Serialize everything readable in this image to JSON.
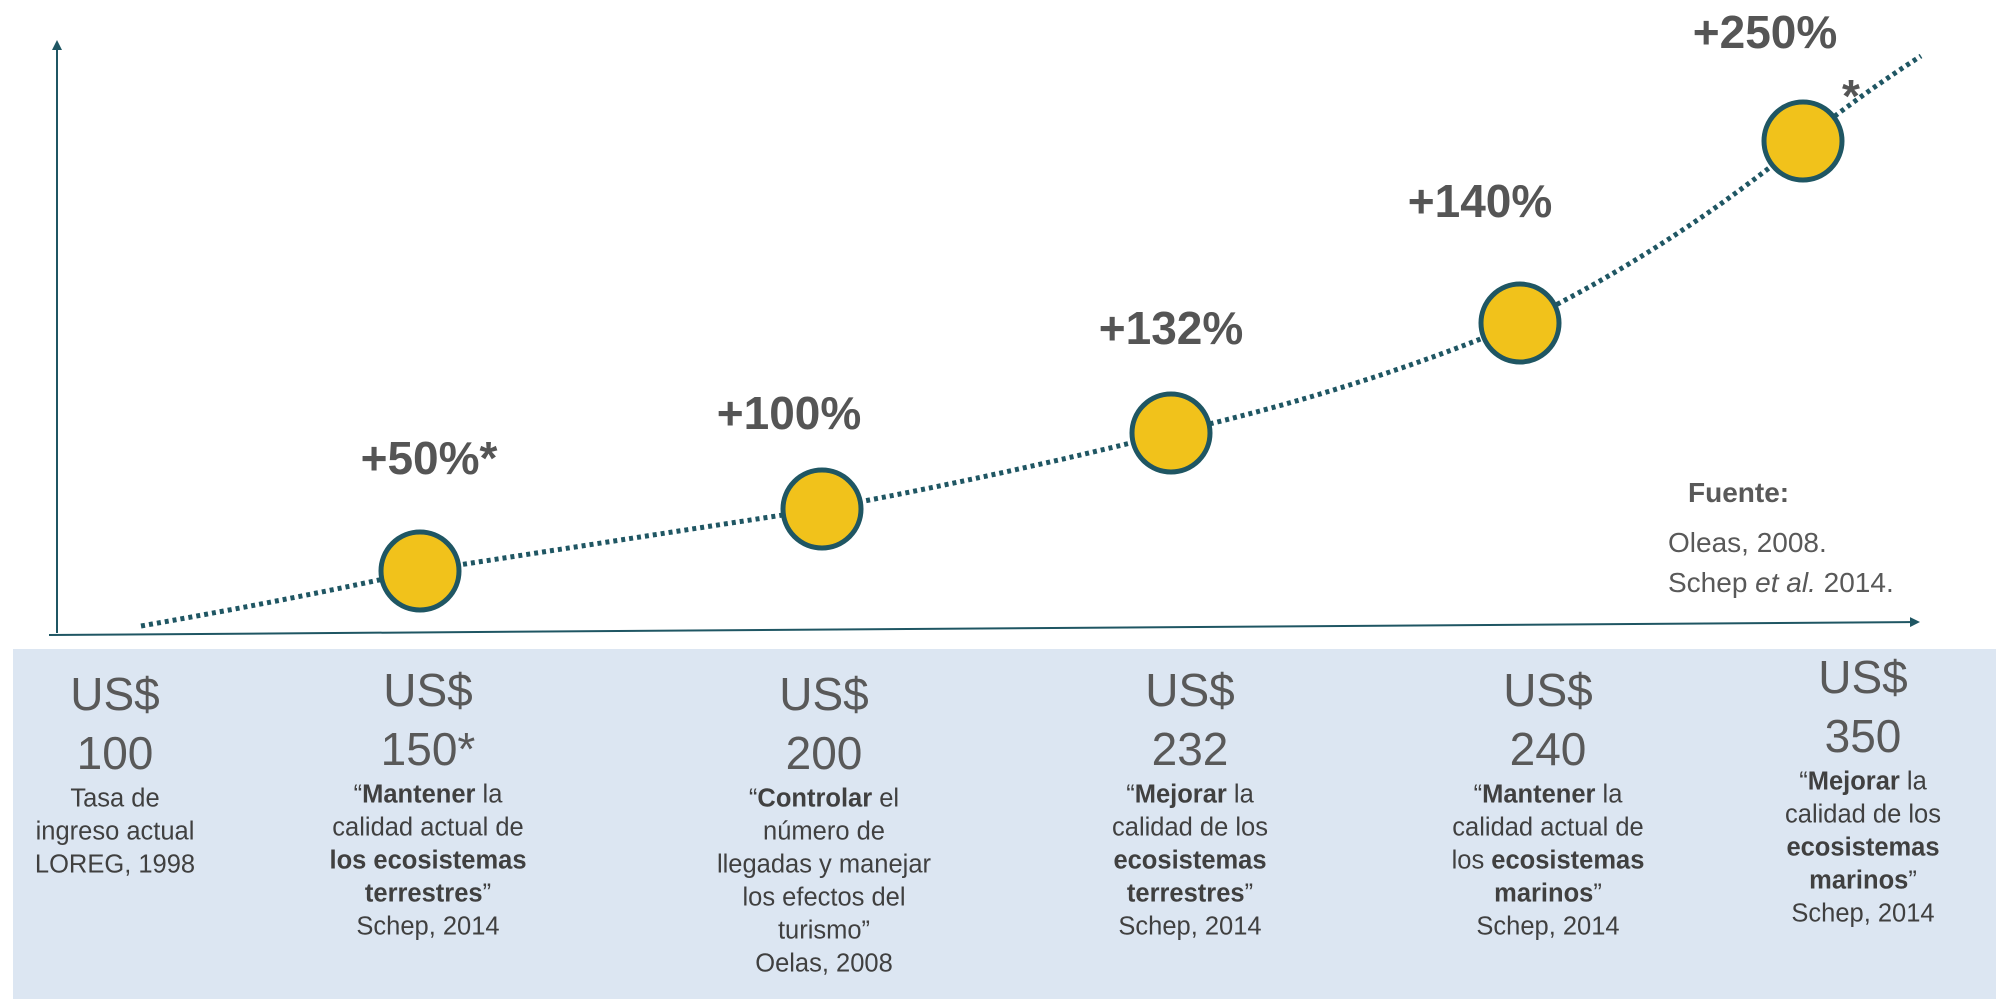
{
  "points": [
    {
      "label": "+50%*"
    },
    {
      "label": "+100%"
    },
    {
      "label": "+132%"
    },
    {
      "label": "+140%"
    },
    {
      "label": "+250%"
    }
  ],
  "extra_mark": "*",
  "source": {
    "title": "Fuente:",
    "lines": [
      [
        {
          "text": "Oleas, 2008."
        }
      ],
      [
        {
          "text": "Schep "
        },
        {
          "text": "et al.",
          "italic": true
        },
        {
          "text": " 2014."
        }
      ]
    ]
  },
  "columns": [
    {
      "currency": "US$",
      "amount": "100",
      "lines": [
        [
          {
            "text": "Tasa de"
          }
        ],
        [
          {
            "text": "ingreso actual"
          }
        ],
        [
          {
            "text": "LOREG, 1998"
          }
        ]
      ]
    },
    {
      "currency": "US$",
      "amount": "150*",
      "lines": [
        [
          {
            "text": "“"
          },
          {
            "text": "Mantener",
            "bold": true
          },
          {
            "text": " la"
          }
        ],
        [
          {
            "text": "calidad actual de"
          }
        ],
        [
          {
            "text": "los ecosistemas",
            "bold": true
          }
        ],
        [
          {
            "text": "terrestres",
            "bold": true
          },
          {
            "text": "”"
          }
        ],
        [
          {
            "text": "Schep, 2014"
          }
        ]
      ]
    },
    {
      "currency": "US$",
      "amount": "200",
      "lines": [
        [
          {
            "text": "“"
          },
          {
            "text": "Controlar",
            "bold": true
          },
          {
            "text": " el"
          }
        ],
        [
          {
            "text": "número de"
          }
        ],
        [
          {
            "text": "llegadas y manejar"
          }
        ],
        [
          {
            "text": "los efectos del"
          }
        ],
        [
          {
            "text": "turismo”"
          }
        ],
        [
          {
            "text": "Oelas, 2008"
          }
        ]
      ]
    },
    {
      "currency": "US$",
      "amount": "232",
      "lines": [
        [
          {
            "text": "“"
          },
          {
            "text": "Mejorar",
            "bold": true
          },
          {
            "text": " la"
          }
        ],
        [
          {
            "text": "calidad de los"
          }
        ],
        [
          {
            "text": "ecosistemas",
            "bold": true
          }
        ],
        [
          {
            "text": "terrestres",
            "bold": true
          },
          {
            "text": "”"
          }
        ],
        [
          {
            "text": "Schep, 2014"
          }
        ]
      ]
    },
    {
      "currency": "US$",
      "amount": "240",
      "lines": [
        [
          {
            "text": "“"
          },
          {
            "text": "Mantener",
            "bold": true
          },
          {
            "text": " la"
          }
        ],
        [
          {
            "text": "calidad actual de"
          }
        ],
        [
          {
            "text": "los "
          },
          {
            "text": "ecosistemas",
            "bold": true
          }
        ],
        [
          {
            "text": "marinos",
            "bold": true
          },
          {
            "text": "”"
          }
        ],
        [
          {
            "text": "Schep, 2014"
          }
        ]
      ]
    },
    {
      "currency": "US$",
      "amount": "350",
      "lines": [
        [
          {
            "text": "“"
          },
          {
            "text": "Mejorar",
            "bold": true
          },
          {
            "text": " la"
          }
        ],
        [
          {
            "text": "calidad de los"
          }
        ],
        [
          {
            "text": "ecosistemas",
            "bold": true
          }
        ],
        [
          {
            "text": "marinos",
            "bold": true
          },
          {
            "text": "”"
          }
        ],
        [
          {
            "text": "Schep, 2014"
          }
        ]
      ]
    }
  ]
}
